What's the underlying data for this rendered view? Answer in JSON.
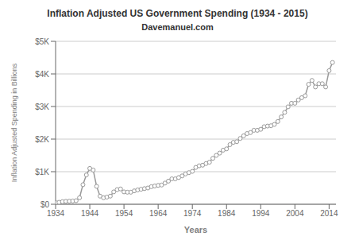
{
  "chart_data": {
    "type": "line",
    "title": "Inflation Adjusted US Government Spending (1934 - 2015)",
    "subtitle": "Davemanuel.com",
    "x_label": "Years",
    "y_label": "Inflation Adjusted Spending in Billions",
    "x": [
      1934,
      1935,
      1936,
      1937,
      1938,
      1939,
      1940,
      1941,
      1942,
      1943,
      1944,
      1945,
      1946,
      1947,
      1948,
      1949,
      1950,
      1951,
      1952,
      1953,
      1954,
      1955,
      1956,
      1957,
      1958,
      1959,
      1960,
      1961,
      1962,
      1963,
      1964,
      1965,
      1966,
      1967,
      1968,
      1969,
      1970,
      1971,
      1972,
      1973,
      1974,
      1975,
      1976,
      1977,
      1978,
      1979,
      1980,
      1981,
      1982,
      1983,
      1984,
      1985,
      1986,
      1987,
      1988,
      1989,
      1990,
      1991,
      1992,
      1993,
      1994,
      1995,
      1996,
      1997,
      1998,
      1999,
      2000,
      2001,
      2002,
      2003,
      2004,
      2005,
      2006,
      2007,
      2008,
      2009,
      2010,
      2011,
      2012,
      2013,
      2014,
      2015
    ],
    "values": [
      50,
      60,
      80,
      90,
      95,
      100,
      110,
      200,
      600,
      900,
      1100,
      1050,
      550,
      250,
      200,
      220,
      250,
      380,
      450,
      470,
      380,
      370,
      370,
      410,
      440,
      460,
      480,
      500,
      540,
      560,
      580,
      590,
      650,
      710,
      780,
      780,
      820,
      870,
      930,
      970,
      1010,
      1130,
      1180,
      1200,
      1250,
      1290,
      1410,
      1500,
      1570,
      1660,
      1700,
      1830,
      1900,
      1920,
      2020,
      2100,
      2170,
      2200,
      2270,
      2270,
      2300,
      2380,
      2400,
      2410,
      2450,
      2540,
      2680,
      2820,
      2990,
      3100,
      3100,
      3200,
      3270,
      3330,
      3680,
      3800,
      3600,
      3700,
      3700,
      3600,
      4100,
      4350
    ],
    "color": "#999999",
    "marker": "circle",
    "xlim": [
      1934,
      2016
    ],
    "xticks": [
      1934,
      1944,
      1954,
      1964,
      1974,
      1984,
      1994,
      2004,
      2014
    ],
    "ylim": [
      0,
      5000
    ],
    "yticks": [
      {
        "value": 0,
        "label": "$0"
      },
      {
        "value": 1000,
        "label": "$1K"
      },
      {
        "value": 2000,
        "label": "$2K"
      },
      {
        "value": 3000,
        "label": "$3K"
      },
      {
        "value": 4000,
        "label": "$4K"
      },
      {
        "value": 5000,
        "label": "$5K"
      }
    ],
    "grid": true
  }
}
